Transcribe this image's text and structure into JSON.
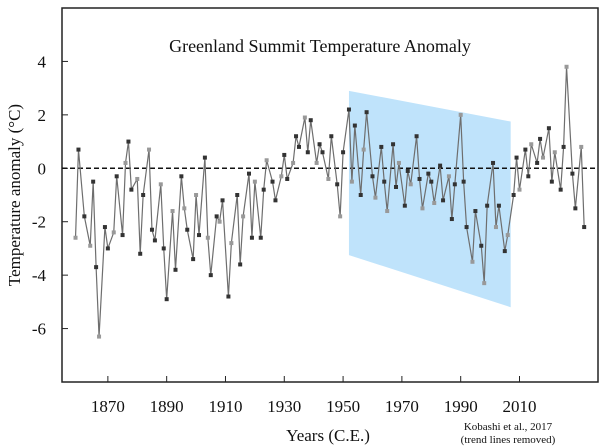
{
  "chart_data": {
    "type": "line",
    "title": "Greenland Summit Temperature Anomaly",
    "x_label": "Years (C.E.)",
    "y_label": "Temperature anomaly (°C)",
    "source": "Kobashi et al., 2017",
    "source_note": "(trend lines removed)",
    "xlim": [
      1854.4,
      2036.7
    ],
    "ylim": [
      -8,
      6
    ],
    "xticks": [
      1870,
      1890,
      1910,
      1930,
      1950,
      1970,
      1990,
      2010
    ],
    "yticks": [
      4,
      2,
      0,
      -2,
      -4,
      -6
    ],
    "zero_line": true,
    "band": {
      "x": [
        1952,
        2007
      ],
      "top": [
        2.9,
        1.75
      ],
      "bottom": [
        -3.25,
        -5.2
      ],
      "color": "#bfe3fb"
    },
    "series": [
      {
        "name": "Temperature anomaly",
        "color": "#6e6e6e",
        "x": [
          1859,
          1860,
          1862,
          1864,
          1865,
          1866,
          1867,
          1869,
          1870,
          1872,
          1873,
          1875,
          1876,
          1877,
          1878,
          1880,
          1881,
          1882,
          1884,
          1885,
          1886,
          1888,
          1889,
          1890,
          1892,
          1893,
          1895,
          1896,
          1897,
          1899,
          1900,
          1901,
          1903,
          1904,
          1905,
          1907,
          1908,
          1909,
          1911,
          1912,
          1914,
          1915,
          1916,
          1918,
          1919,
          1920,
          1922,
          1923,
          1924,
          1926,
          1927,
          1929,
          1930,
          1931,
          1933,
          1934,
          1935,
          1937,
          1938,
          1939,
          1941,
          1942,
          1943,
          1945,
          1946,
          1948,
          1949,
          1950,
          1952,
          1953,
          1954,
          1956,
          1957,
          1958,
          1960,
          1961,
          1963,
          1964,
          1965,
          1967,
          1968,
          1969,
          1971,
          1972,
          1973,
          1975,
          1976,
          1977,
          1979,
          1980,
          1981,
          1983,
          1984,
          1986,
          1987,
          1988,
          1990,
          1991,
          1992,
          1994,
          1995,
          1997,
          1998,
          1999,
          2001,
          2002,
          2003,
          2005,
          2006,
          2008,
          2009,
          2010,
          2012,
          2013,
          2014,
          2016,
          2017,
          2018,
          2020,
          2021,
          2022,
          2024,
          2025,
          2026,
          2028,
          2029,
          2031,
          2032
        ],
        "values": [
          -2.6,
          0.7,
          -1.8,
          -2.9,
          -0.5,
          -3.7,
          -6.3,
          -2.2,
          -3.0,
          -2.4,
          -0.3,
          -2.5,
          0.2,
          1.0,
          -0.8,
          -0.4,
          -3.2,
          -1.0,
          0.7,
          -2.3,
          -2.7,
          -0.6,
          -3.0,
          -4.9,
          -1.6,
          -3.8,
          -0.3,
          -1.5,
          -2.3,
          -3.4,
          -1.0,
          -2.5,
          0.4,
          -2.6,
          -4.0,
          -1.8,
          -2.0,
          -1.2,
          -4.8,
          -2.8,
          -1.0,
          -3.6,
          -1.8,
          -0.2,
          -2.6,
          -0.5,
          -2.6,
          -0.8,
          0.3,
          -0.5,
          -1.2,
          -0.3,
          0.5,
          -0.4,
          0.2,
          1.2,
          0.8,
          1.9,
          0.6,
          1.8,
          0.2,
          0.9,
          0.6,
          -0.4,
          1.2,
          -0.6,
          -1.8,
          0.6,
          2.2,
          -0.5,
          1.6,
          -1.0,
          0.7,
          2.1,
          -0.3,
          -1.1,
          0.8,
          -0.5,
          -1.6,
          0.9,
          -0.7,
          0.2,
          -1.4,
          -0.1,
          -0.6,
          1.2,
          -0.4,
          -1.5,
          -0.2,
          -0.5,
          -1.3,
          0.1,
          -1.2,
          -0.3,
          -1.9,
          -0.6,
          2.0,
          -0.5,
          -2.2,
          -3.5,
          -1.6,
          -2.9,
          -4.3,
          -1.4,
          0.2,
          -2.2,
          -1.4,
          -3.1,
          -2.5,
          -1.0,
          0.4,
          -0.8,
          0.7,
          -0.3,
          0.9,
          0.2,
          1.1,
          0.4,
          1.5,
          -0.5,
          0.6,
          -0.8,
          0.8,
          3.8,
          -0.2,
          -1.5,
          0.8,
          -2.2
        ]
      }
    ]
  }
}
